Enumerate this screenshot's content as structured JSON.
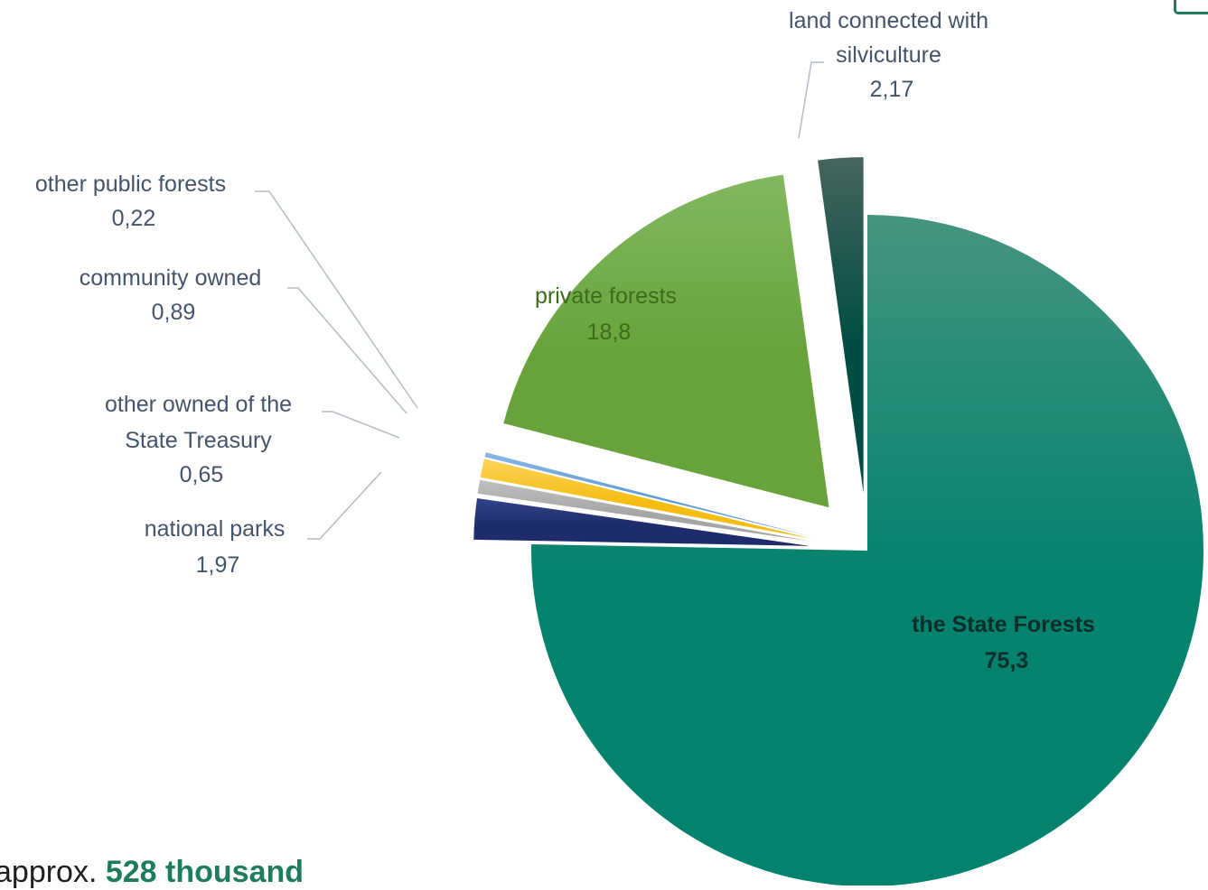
{
  "chart_data": {
    "type": "pie",
    "unit": "%",
    "slices": [
      {
        "name": "the State Forests",
        "value": 75.3,
        "label": "75,3",
        "color": "#03826d",
        "color_light": "#45947f",
        "exploded": false
      },
      {
        "name": "national parks",
        "value": 1.97,
        "label": "1,97",
        "color": "#1f2c6c",
        "color_light": "#33448a",
        "exploded": true
      },
      {
        "name": "other owned of the State Treasury",
        "value": 0.65,
        "label": "0,65",
        "color": "#a6a6a6",
        "color_light": "#bfbfbf",
        "exploded": true
      },
      {
        "name": "community owned",
        "value": 0.89,
        "label": "0,89",
        "color": "#f5bd12",
        "color_light": "#ffd45a",
        "exploded": true
      },
      {
        "name": "other public forests",
        "value": 0.22,
        "label": "0,22",
        "color": "#5b9bd5",
        "color_light": "#8ab6e3",
        "exploded": true
      },
      {
        "name": "private forests",
        "value": 18.8,
        "label": "18,8",
        "color": "#67a33a",
        "color_light": "#82b860",
        "exploded": true
      },
      {
        "name": "land connected with silviculture",
        "value": 2.17,
        "label": "2,17",
        "color": "#004d43",
        "color_light": "#46645d",
        "exploded": true
      }
    ],
    "labels_text": {
      "state_forests": [
        "the State Forests",
        "75,3"
      ],
      "private_forests": [
        "private forests",
        "18,8"
      ],
      "land_silviculture": [
        "land connected with",
        "silviculture",
        "2,17"
      ],
      "other_public": [
        "other public forests",
        "0,22"
      ],
      "community": [
        "community owned",
        "0,89"
      ],
      "treasury": [
        "other owned of the",
        "State Treasury",
        "0,65"
      ],
      "national_parks": [
        "national parks",
        "1,97"
      ]
    }
  },
  "footer": {
    "prefix": "approx. ",
    "highlight": "528 thousand"
  },
  "colors": {
    "accent": "#1e7b5e",
    "label_text": "#44546a"
  }
}
